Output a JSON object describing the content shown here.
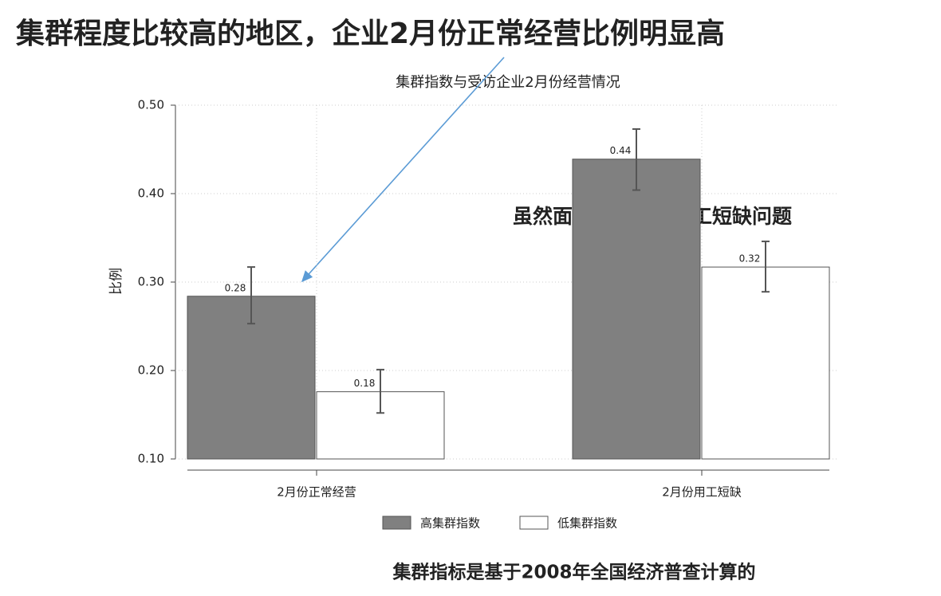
{
  "slide_title": "集群程度比较高的地区，企业2月份正常经营比例明显高",
  "annotation": "虽然面临更严重的用工短缺问题",
  "footnote": "集群指标是基于2008年全国经济普查计算的",
  "chart_data": {
    "type": "bar",
    "title": "集群指数与受访企业2月份经营情况",
    "y_label": "比例",
    "categories": [
      "2月份正常经营",
      "2月份用工短缺"
    ],
    "series": [
      {
        "name": "高集群指数",
        "color": "#808080",
        "values": [
          0.284,
          0.439
        ],
        "value_labels": [
          "0.28",
          "0.44"
        ],
        "ci_low": [
          0.253,
          0.404
        ],
        "ci_high": [
          0.317,
          0.473
        ]
      },
      {
        "name": "低集群指数",
        "color": "#ffffff",
        "values": [
          0.176,
          0.317
        ],
        "value_labels": [
          "0.18",
          "0.32"
        ],
        "ci_low": [
          0.152,
          0.289
        ],
        "ci_high": [
          0.201,
          0.346
        ]
      }
    ],
    "ylim": [
      0.1,
      0.5
    ],
    "yticks": [
      {
        "value": 0.1,
        "label": "0.10"
      },
      {
        "value": 0.2,
        "label": "0.20"
      },
      {
        "value": 0.3,
        "label": "0.30"
      },
      {
        "value": 0.4,
        "label": "0.40"
      },
      {
        "value": 0.5,
        "label": "0.50"
      }
    ],
    "grid": true
  }
}
